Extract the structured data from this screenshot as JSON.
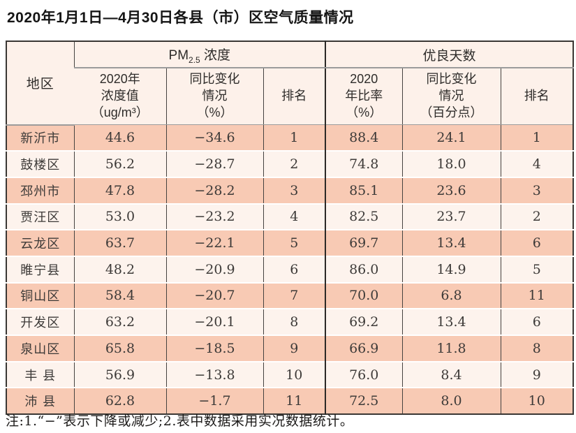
{
  "page": {
    "title": "2020年1月1日—4月30日各县（市）区空气质量情况",
    "footnote": "注:1.“−”表示下降或减少;2.表中数据采用实况数据统计。"
  },
  "colors": {
    "row_salmon": "#f8cab4",
    "row_light": "#fdf3ed",
    "header_bg": "#fdf1ea",
    "outer_border": "#3a3734",
    "grid_dark": "#454240",
    "grid_gray": "#9b9b9b"
  },
  "table": {
    "corner_header": "地区",
    "group_pm": {
      "prefix": "PM",
      "subscript": "2.5",
      "suffix": " 浓度"
    },
    "group_good": "优良天数",
    "subheaders": {
      "pm_value": "2020年\n浓度值\n（ug/m³）",
      "pm_change": "同比变化\n情况\n（%）",
      "pm_rank": "排名",
      "good_rate": "2020\n年比率\n（%）",
      "good_change": "同比变化\n情况\n（百分点）",
      "good_rank": "排名"
    },
    "rows": [
      {
        "region": "新沂市",
        "pm_value": "44.6",
        "pm_change": "−34.6",
        "pm_rank": "1",
        "good_rate": "88.4",
        "good_change": "24.1",
        "good_rank": "1"
      },
      {
        "region": "鼓楼区",
        "pm_value": "56.2",
        "pm_change": "−28.7",
        "pm_rank": "2",
        "good_rate": "74.8",
        "good_change": "18.0",
        "good_rank": "4"
      },
      {
        "region": "邳州市",
        "pm_value": "47.8",
        "pm_change": "−28.2",
        "pm_rank": "3",
        "good_rate": "85.1",
        "good_change": "23.6",
        "good_rank": "3"
      },
      {
        "region": "贾汪区",
        "pm_value": "53.0",
        "pm_change": "−23.2",
        "pm_rank": "4",
        "good_rate": "82.5",
        "good_change": "23.7",
        "good_rank": "2"
      },
      {
        "region": "云龙区",
        "pm_value": "63.7",
        "pm_change": "−22.1",
        "pm_rank": "5",
        "good_rate": "69.7",
        "good_change": "13.4",
        "good_rank": "6"
      },
      {
        "region": "睢宁县",
        "pm_value": "48.2",
        "pm_change": "−20.9",
        "pm_rank": "6",
        "good_rate": "86.0",
        "good_change": "14.9",
        "good_rank": "5"
      },
      {
        "region": "铜山区",
        "pm_value": "58.4",
        "pm_change": "−20.7",
        "pm_rank": "7",
        "good_rate": "70.0",
        "good_change": "6.8",
        "good_rank": "11"
      },
      {
        "region": "开发区",
        "pm_value": "63.2",
        "pm_change": "−20.1",
        "pm_rank": "8",
        "good_rate": "69.2",
        "good_change": "13.4",
        "good_rank": "6"
      },
      {
        "region": "泉山区",
        "pm_value": "65.8",
        "pm_change": "−18.5",
        "pm_rank": "9",
        "good_rate": "66.9",
        "good_change": "11.8",
        "good_rank": "8"
      },
      {
        "region": "丰 县",
        "pm_value": "56.9",
        "pm_change": "−13.8",
        "pm_rank": "10",
        "good_rate": "76.0",
        "good_change": "8.4",
        "good_rank": "9"
      },
      {
        "region": "沛 县",
        "pm_value": "62.8",
        "pm_change": "−1.7",
        "pm_rank": "11",
        "good_rate": "72.5",
        "good_change": "8.0",
        "good_rank": "10"
      }
    ]
  }
}
